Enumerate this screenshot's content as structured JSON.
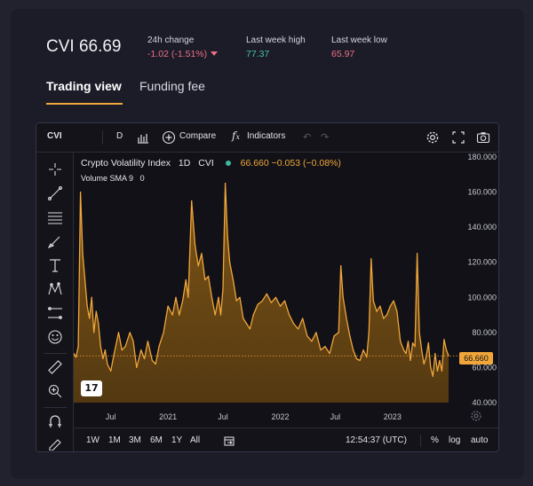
{
  "header": {
    "ticker": "CVI 66.69",
    "change_label": "24h change",
    "change_value": "-1.02 (-1.51%)",
    "high_label": "Last week high",
    "high_value": "77.37",
    "low_label": "Last week low",
    "low_value": "65.97"
  },
  "tabs": [
    {
      "label": "Trading view",
      "active": true
    },
    {
      "label": "Funding fee",
      "active": false
    }
  ],
  "toolbar": {
    "symbol": "CVI",
    "interval": "D",
    "compare_label": "Compare",
    "indicators_label": "Indicators"
  },
  "legend": {
    "title": "Crypto Volatility Index",
    "interval": "1D",
    "symbol": "CVI",
    "values": "66.660 −0.053 (−0.08%)",
    "volume": "Volume SMA 9",
    "volume_value": "0"
  },
  "price_tag": "66.660",
  "tv_logo": "17",
  "bottombar": {
    "ranges": [
      "1W",
      "1M",
      "3M",
      "6M",
      "1Y",
      "All"
    ],
    "time": "12:54:37 (UTC)",
    "percent": "%",
    "log": "log",
    "auto": "auto"
  },
  "colors": {
    "accent": "#f0a63a",
    "negative": "#ee6e88",
    "positive": "#48c0a8",
    "background": "#1b1c27",
    "chart_bg": "#111117"
  },
  "icons": {
    "left_tools": [
      "crosshair-icon",
      "trend-line-icon",
      "fib-icon",
      "brush-icon",
      "text-icon",
      "pattern-icon",
      "measure-range-icon",
      "emoji-icon",
      "ruler-icon",
      "zoom-in-icon",
      "magnet-icon",
      "lock-draw-icon"
    ]
  },
  "chart_data": {
    "type": "area",
    "title": "Crypto Volatility Index",
    "ylim": [
      40,
      180
    ],
    "y_ticks": [
      "180.000",
      "160.000",
      "140.000",
      "120.000",
      "100.000",
      "80.000",
      "60.000",
      "40.000"
    ],
    "x_ticks": [
      "Jul",
      "2021",
      "Jul",
      "2022",
      "Jul",
      "2023"
    ],
    "current_value": 66.66,
    "grid": false,
    "legend": "top-left",
    "series": [
      {
        "values": [
          [
            2020.0,
            68
          ],
          [
            2020.02,
            66
          ],
          [
            2020.04,
            72
          ],
          [
            2020.06,
            160
          ],
          [
            2020.08,
            125
          ],
          [
            2020.1,
            110
          ],
          [
            2020.12,
            95
          ],
          [
            2020.14,
            88
          ],
          [
            2020.16,
            100
          ],
          [
            2020.18,
            80
          ],
          [
            2020.2,
            92
          ],
          [
            2020.22,
            85
          ],
          [
            2020.24,
            72
          ],
          [
            2020.26,
            65
          ],
          [
            2020.28,
            70
          ],
          [
            2020.3,
            62
          ],
          [
            2020.33,
            58
          ],
          [
            2020.36,
            68
          ],
          [
            2020.4,
            80
          ],
          [
            2020.43,
            70
          ],
          [
            2020.46,
            72
          ],
          [
            2020.5,
            80
          ],
          [
            2020.53,
            75
          ],
          [
            2020.56,
            60
          ],
          [
            2020.6,
            70
          ],
          [
            2020.63,
            65
          ],
          [
            2020.66,
            75
          ],
          [
            2020.7,
            64
          ],
          [
            2020.73,
            62
          ],
          [
            2020.76,
            72
          ],
          [
            2020.8,
            80
          ],
          [
            2020.84,
            95
          ],
          [
            2020.88,
            90
          ],
          [
            2020.91,
            100
          ],
          [
            2020.94,
            90
          ],
          [
            2020.97,
            98
          ],
          [
            2021.0,
            110
          ],
          [
            2021.02,
            100
          ],
          [
            2021.05,
            155
          ],
          [
            2021.08,
            130
          ],
          [
            2021.11,
            118
          ],
          [
            2021.14,
            125
          ],
          [
            2021.17,
            110
          ],
          [
            2021.2,
            112
          ],
          [
            2021.23,
            100
          ],
          [
            2021.26,
            90
          ],
          [
            2021.29,
            100
          ],
          [
            2021.31,
            90
          ],
          [
            2021.33,
            105
          ],
          [
            2021.35,
            165
          ],
          [
            2021.37,
            135
          ],
          [
            2021.39,
            120
          ],
          [
            2021.42,
            110
          ],
          [
            2021.45,
            98
          ],
          [
            2021.48,
            100
          ],
          [
            2021.51,
            88
          ],
          [
            2021.54,
            85
          ],
          [
            2021.57,
            82
          ],
          [
            2021.6,
            90
          ],
          [
            2021.64,
            96
          ],
          [
            2021.68,
            98
          ],
          [
            2021.72,
            102
          ],
          [
            2021.76,
            97
          ],
          [
            2021.8,
            100
          ],
          [
            2021.84,
            95
          ],
          [
            2021.88,
            98
          ],
          [
            2021.92,
            90
          ],
          [
            2021.96,
            85
          ],
          [
            2022.0,
            82
          ],
          [
            2022.04,
            88
          ],
          [
            2022.08,
            78
          ],
          [
            2022.12,
            75
          ],
          [
            2022.16,
            80
          ],
          [
            2022.2,
            70
          ],
          [
            2022.24,
            72
          ],
          [
            2022.28,
            68
          ],
          [
            2022.32,
            78
          ],
          [
            2022.36,
            80
          ],
          [
            2022.38,
            118
          ],
          [
            2022.4,
            100
          ],
          [
            2022.43,
            88
          ],
          [
            2022.46,
            78
          ],
          [
            2022.49,
            70
          ],
          [
            2022.52,
            65
          ],
          [
            2022.55,
            64
          ],
          [
            2022.58,
            70
          ],
          [
            2022.61,
            66
          ],
          [
            2022.63,
            80
          ],
          [
            2022.65,
            122
          ],
          [
            2022.67,
            98
          ],
          [
            2022.7,
            92
          ],
          [
            2022.73,
            95
          ],
          [
            2022.76,
            88
          ],
          [
            2022.79,
            90
          ],
          [
            2022.82,
            95
          ],
          [
            2022.85,
            98
          ],
          [
            2022.88,
            92
          ],
          [
            2022.91,
            75
          ],
          [
            2022.94,
            70
          ],
          [
            2022.96,
            68
          ],
          [
            2022.98,
            75
          ],
          [
            2023.0,
            64
          ],
          [
            2023.02,
            74
          ],
          [
            2023.04,
            72
          ],
          [
            2023.06,
            125
          ],
          [
            2023.08,
            80
          ],
          [
            2023.1,
            70
          ],
          [
            2023.12,
            62
          ],
          [
            2023.14,
            66
          ],
          [
            2023.16,
            74
          ],
          [
            2023.18,
            60
          ],
          [
            2023.2,
            55
          ],
          [
            2023.22,
            68
          ],
          [
            2023.24,
            58
          ],
          [
            2023.26,
            64
          ],
          [
            2023.28,
            58
          ],
          [
            2023.3,
            76
          ],
          [
            2023.32,
            70
          ],
          [
            2023.34,
            66.66
          ]
        ]
      }
    ]
  }
}
